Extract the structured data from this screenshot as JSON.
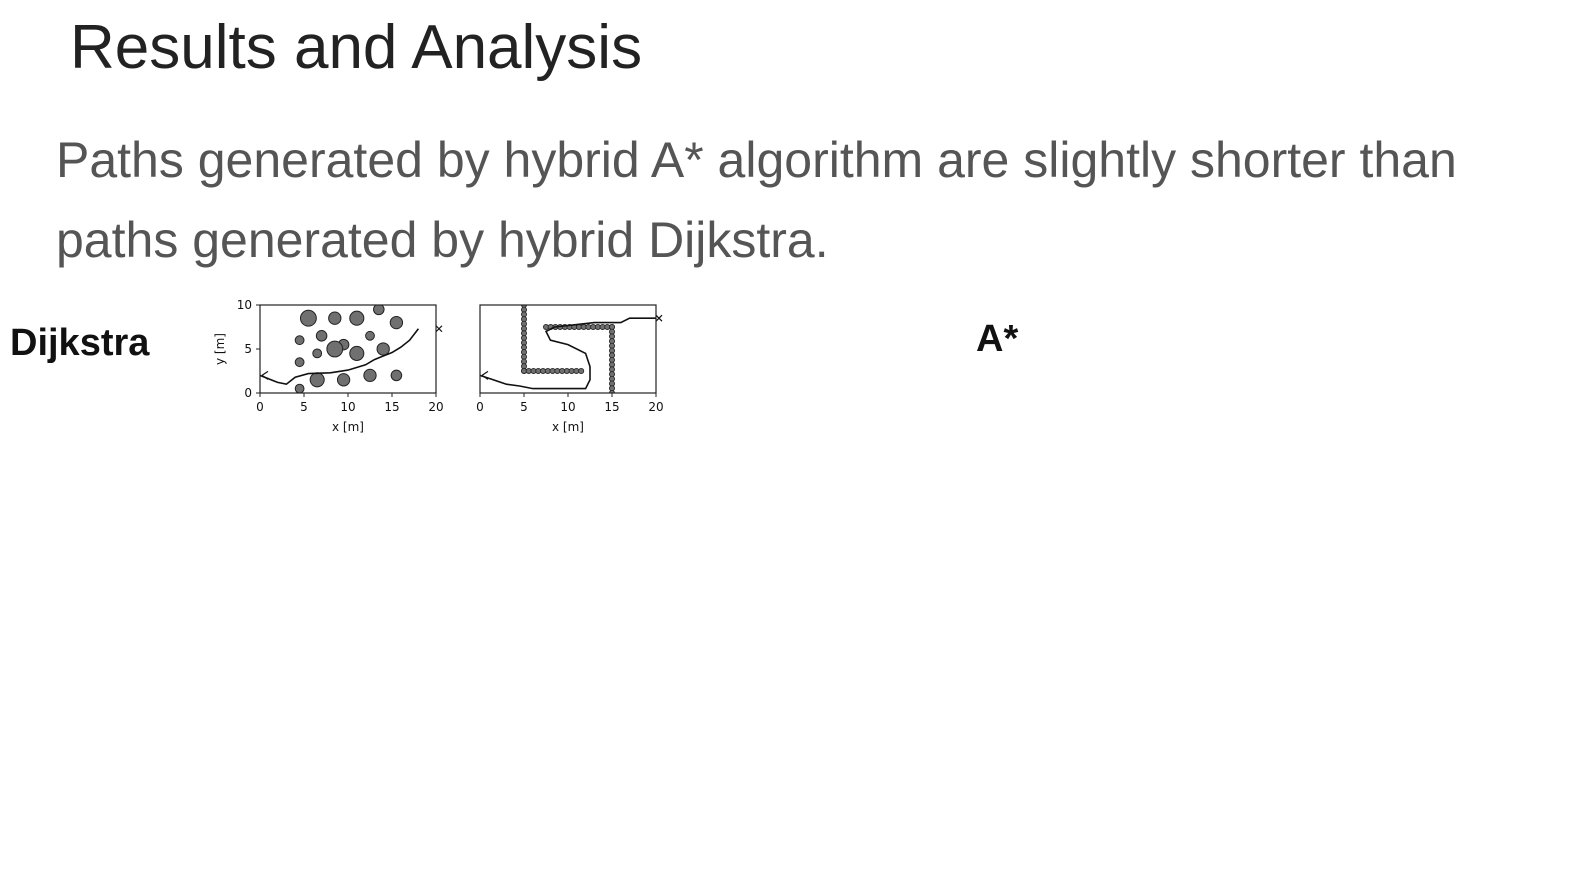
{
  "slide": {
    "title": "Results and Analysis",
    "subtitle": "Paths generated by hybrid A* algorithm are slightly shorter than paths generated by hybrid Dijkstra."
  },
  "labels": {
    "dijkstra": "Dijkstra",
    "astar": "A*"
  },
  "axes": {
    "ylabel": "y [m]",
    "xlabel": "x [m]",
    "xticks": [
      "0",
      "5",
      "10",
      "15",
      "20"
    ],
    "yticks": [
      "0",
      "5",
      "10"
    ],
    "xrange": [
      0,
      20
    ],
    "yrange": [
      0,
      10
    ]
  },
  "colors": {
    "obstacle_fill": "#707070",
    "path": "#111111",
    "frame": "#222222"
  },
  "groups": [
    {
      "id": "dijkstra",
      "panels": [
        {
          "type": "circles",
          "circles": [
            [
              5.5,
              8.5,
              0.9
            ],
            [
              8.5,
              8.5,
              0.7
            ],
            [
              11,
              8.5,
              0.8
            ],
            [
              13.5,
              9.5,
              0.6
            ],
            [
              15.5,
              8,
              0.7
            ],
            [
              4.5,
              6,
              0.5
            ],
            [
              7,
              6.5,
              0.6
            ],
            [
              9.5,
              5.5,
              0.6
            ],
            [
              12.5,
              6.5,
              0.5
            ],
            [
              14,
              5,
              0.7
            ],
            [
              6.5,
              4.5,
              0.5
            ],
            [
              8.5,
              5,
              0.9
            ],
            [
              11,
              4.5,
              0.8
            ],
            [
              4.5,
              3.5,
              0.5
            ],
            [
              6.5,
              1.5,
              0.8
            ],
            [
              9.5,
              1.5,
              0.7
            ],
            [
              12.5,
              2,
              0.7
            ],
            [
              15.5,
              2,
              0.6
            ],
            [
              4.5,
              0.5,
              0.5
            ]
          ],
          "path": [
            [
              0,
              2
            ],
            [
              2,
              1.2
            ],
            [
              3,
              1
            ],
            [
              4,
              1.8
            ],
            [
              5.5,
              2.2
            ],
            [
              8,
              2.3
            ],
            [
              10,
              2.6
            ],
            [
              12,
              3.2
            ],
            [
              13,
              3.8
            ],
            [
              15,
              4.6
            ],
            [
              16,
              5.2
            ],
            [
              17,
              6
            ],
            [
              18,
              7.3
            ]
          ]
        },
        {
          "type": "walls",
          "walls": [
            [
              [
                5,
                10
              ],
              [
                5,
                2.5
              ],
              [
                11.5,
                2.5
              ]
            ],
            [
              [
                7.5,
                7.5
              ],
              [
                15,
                7.5
              ],
              [
                15,
                0
              ]
            ]
          ],
          "path": [
            [
              0,
              2
            ],
            [
              1.5,
              1.5
            ],
            [
              3,
              1
            ],
            [
              4.5,
              0.8
            ],
            [
              6,
              0.5
            ],
            [
              9,
              0.5
            ],
            [
              12,
              0.5
            ],
            [
              12.5,
              1.5
            ],
            [
              12.5,
              3
            ],
            [
              12,
              4.5
            ],
            [
              10,
              5.5
            ],
            [
              8,
              6
            ],
            [
              7.5,
              7
            ],
            [
              8.5,
              7.5
            ],
            [
              13,
              8
            ],
            [
              16,
              8
            ],
            [
              17,
              8.5
            ],
            [
              19,
              8.5
            ],
            [
              20,
              8.5
            ]
          ]
        }
      ]
    }
  ]
}
